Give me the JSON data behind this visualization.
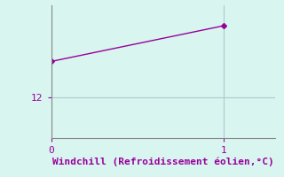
{
  "x_data": [
    0,
    1
  ],
  "y_data": [
    12.7,
    13.4
  ],
  "line_color": "#990099",
  "marker": "D",
  "marker_size": 3,
  "bg_color": "#d8f5f0",
  "grid_color": "#aacccc",
  "xlabel": "Windchill (Refroidissement éolien,°C)",
  "xlabel_color": "#990099",
  "xlabel_fontsize": 8,
  "tick_color": "#990099",
  "tick_fontsize": 8,
  "xlim": [
    0,
    1.3
  ],
  "ylim": [
    11.2,
    13.8
  ],
  "yticks": [
    12
  ],
  "xticks": [
    0,
    1
  ],
  "spine_color": "#888888"
}
